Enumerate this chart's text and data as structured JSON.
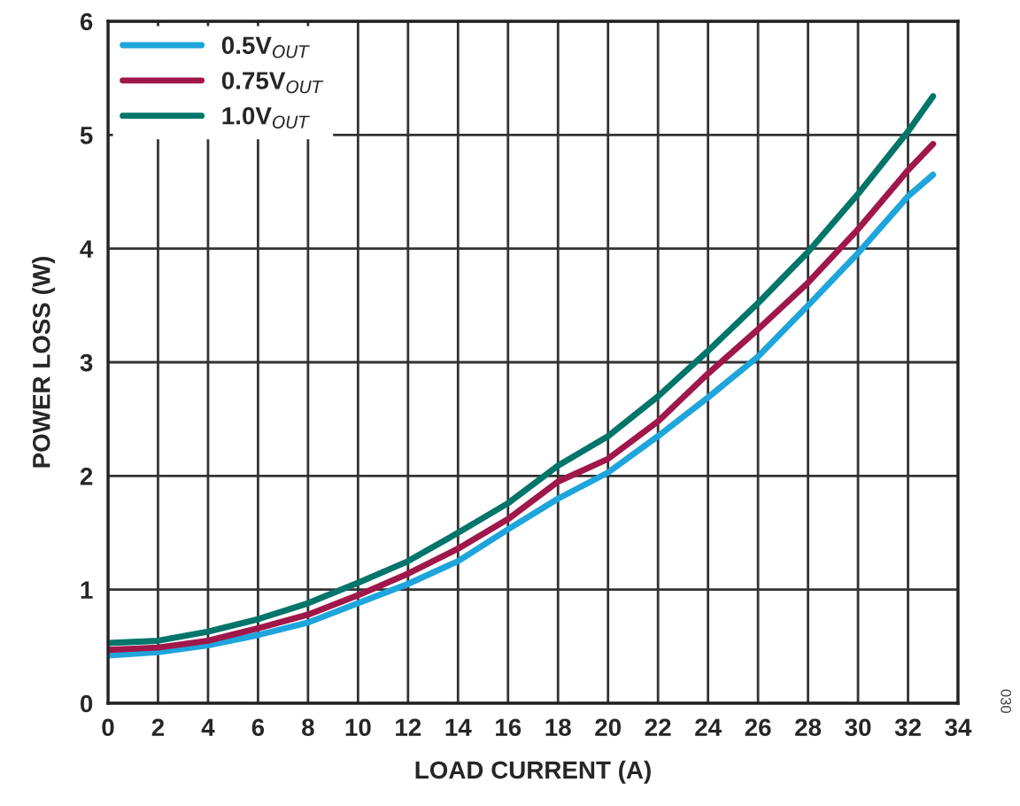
{
  "chart_data": {
    "type": "line",
    "xlabel": "LOAD CURRENT (A)",
    "ylabel": "POWER LOSS (W)",
    "xlim": [
      0,
      34
    ],
    "xticks": [
      0,
      2,
      4,
      6,
      8,
      10,
      12,
      14,
      16,
      18,
      20,
      22,
      24,
      26,
      28,
      30,
      32,
      34
    ],
    "ylim": [
      0,
      6
    ],
    "yticks": [
      0,
      1,
      2,
      3,
      4,
      5,
      6
    ],
    "grid": true,
    "legend": "top left",
    "annotations": [
      "030"
    ],
    "series": [
      {
        "name": "0.5V$_{OUT}$",
        "color": "#1ea5db",
        "x": [
          0,
          2,
          4,
          6,
          8,
          10,
          12,
          14,
          16,
          18,
          20,
          22,
          24,
          26,
          28,
          30,
          32,
          33
        ],
        "values": [
          0.42,
          0.45,
          0.51,
          0.6,
          0.71,
          0.88,
          1.05,
          1.25,
          1.53,
          1.8,
          2.03,
          2.35,
          2.69,
          3.05,
          3.5,
          3.96,
          4.46,
          4.65
        ]
      },
      {
        "name": "0.75V$_{OUT}$",
        "color": "#a0174a",
        "x": [
          0,
          2,
          4,
          6,
          8,
          10,
          12,
          14,
          16,
          18,
          20,
          22,
          24,
          26,
          28,
          30,
          32,
          33
        ],
        "values": [
          0.47,
          0.49,
          0.55,
          0.66,
          0.78,
          0.95,
          1.14,
          1.36,
          1.62,
          1.95,
          2.15,
          2.48,
          2.9,
          3.29,
          3.7,
          4.17,
          4.69,
          4.92
        ]
      },
      {
        "name": "1.0V$_{OUT}$",
        "color": "#00756a",
        "x": [
          0,
          2,
          4,
          6,
          8,
          10,
          12,
          14,
          16,
          18,
          20,
          22,
          24,
          26,
          28,
          30,
          32,
          33
        ],
        "values": [
          0.53,
          0.55,
          0.63,
          0.74,
          0.88,
          1.06,
          1.25,
          1.5,
          1.76,
          2.09,
          2.35,
          2.7,
          3.1,
          3.52,
          3.97,
          4.48,
          5.03,
          5.34
        ]
      }
    ]
  }
}
